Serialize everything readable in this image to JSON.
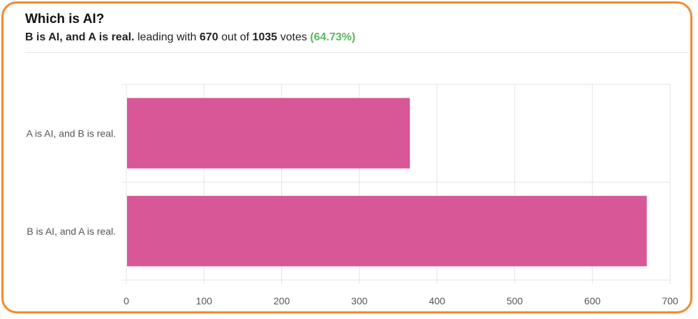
{
  "poll": {
    "title": "Which is AI?",
    "leader": "B is AI, and A is real.",
    "leading_text": "leading with",
    "leader_votes": "670",
    "out_of_text": "out of",
    "total_votes": "1035",
    "votes_text": "votes",
    "percent": "(64.73%)"
  },
  "colors": {
    "bar": "#d85797",
    "accent": "#f2892e",
    "percent": "#5cb85c"
  },
  "chart_data": {
    "type": "bar",
    "orientation": "horizontal",
    "categories": [
      "A is AI, and B is real.",
      "B is AI, and A is real."
    ],
    "values": [
      365,
      670
    ],
    "xlim": [
      0,
      700
    ],
    "xticks": [
      0,
      100,
      200,
      300,
      400,
      500,
      600,
      700
    ],
    "grid": true,
    "xlabel": "",
    "ylabel": ""
  }
}
